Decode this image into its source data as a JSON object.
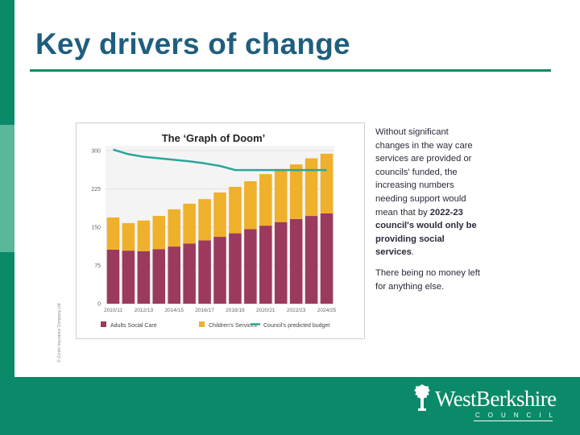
{
  "slide": {
    "title": "Key drivers of change",
    "side_text_intro": "Without significant changes in the way care services are provided or councils' funded, the increasing numbers needing support would mean that by ",
    "side_text_bold": "2022-23 council's would only be providing social services",
    "side_text_end": ".",
    "side_text_2": "There being no money left for anything else.",
    "copyright": "© Zurich Insurance Company Ltd"
  },
  "logo": {
    "wordmark": "WestBerkshire",
    "subtitle": "COUNCIL"
  },
  "colors": {
    "brand_green": "#0a8a68",
    "title_blue": "#1f5e7e",
    "adults": "#9b3a5e",
    "children": "#efb12b",
    "budget": "#2ba59a"
  },
  "chart_data": {
    "type": "bar",
    "stacked": true,
    "title": "The ‘Graph of Doom’",
    "categories": [
      "2010/11",
      "2011/12",
      "2012/13",
      "2013/14",
      "2014/15",
      "2015/16",
      "2016/17",
      "2017/18",
      "2018/19",
      "2019/20",
      "2020/21",
      "2021/22",
      "2022/23",
      "2023/24",
      "2024/25"
    ],
    "x_tick_labels": [
      "2010/11",
      "2012/13",
      "2014/15",
      "2016/17",
      "2018/19",
      "2020/21",
      "2022/23",
      "2024/25"
    ],
    "y_ticks": [
      0,
      75,
      150,
      225,
      300
    ],
    "ylim": [
      0,
      300
    ],
    "grid": true,
    "legend_position": "bottom",
    "series": [
      {
        "name": "Adults Social Care",
        "kind": "bar",
        "values": [
          106,
          104,
          103,
          107,
          112,
          118,
          124,
          131,
          138,
          146,
          153,
          160,
          166,
          172,
          177
        ]
      },
      {
        "name": "Children's Services",
        "kind": "bar",
        "values": [
          63,
          54,
          60,
          65,
          73,
          78,
          81,
          87,
          91,
          94,
          101,
          104,
          107,
          113,
          117
        ]
      },
      {
        "name": "Council's predicted budget",
        "kind": "line",
        "values": [
          302,
          293,
          288,
          285,
          282,
          279,
          275,
          270,
          262,
          262,
          262,
          262,
          262,
          262,
          262
        ]
      }
    ]
  }
}
